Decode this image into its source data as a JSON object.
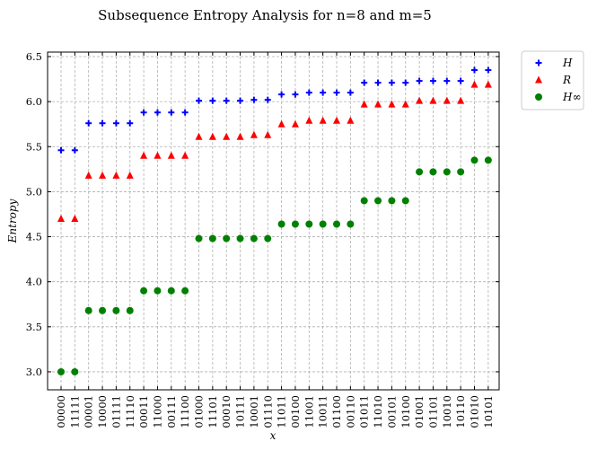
{
  "chart_data": {
    "type": "scatter",
    "title": "Subsequence Entropy Analysis for n=8 and m=5",
    "xlabel": "x",
    "ylabel": "Entropy",
    "ylim": [
      2.8,
      6.55
    ],
    "y_ticks": [
      3.0,
      3.5,
      4.0,
      4.5,
      5.0,
      5.5,
      6.0,
      6.5
    ],
    "y_tick_labels": [
      "3.0",
      "3.5",
      "4.0",
      "4.5",
      "5.0",
      "5.5",
      "6.0",
      "6.5"
    ],
    "grid": true,
    "legend_position": "outside-top-right",
    "categories": [
      "00000",
      "11111",
      "00001",
      "10000",
      "01111",
      "11110",
      "00011",
      "11000",
      "00111",
      "11100",
      "01000",
      "11101",
      "00010",
      "10111",
      "10001",
      "01110",
      "11011",
      "00100",
      "11001",
      "10011",
      "01100",
      "00110",
      "01011",
      "11010",
      "00101",
      "10100",
      "01001",
      "01101",
      "10010",
      "10110",
      "01010",
      "10101"
    ],
    "series": [
      {
        "name": "H",
        "marker": "plus",
        "color": "#0000ff",
        "values": [
          5.46,
          5.46,
          5.76,
          5.76,
          5.76,
          5.76,
          5.88,
          5.88,
          5.88,
          5.88,
          6.01,
          6.01,
          6.01,
          6.01,
          6.02,
          6.02,
          6.08,
          6.08,
          6.1,
          6.1,
          6.1,
          6.1,
          6.21,
          6.21,
          6.21,
          6.21,
          6.23,
          6.23,
          6.23,
          6.23,
          6.35,
          6.35
        ]
      },
      {
        "name": "R",
        "marker": "triangle",
        "color": "#ff0000",
        "values": [
          4.7,
          4.7,
          5.18,
          5.18,
          5.18,
          5.18,
          5.4,
          5.4,
          5.4,
          5.4,
          5.61,
          5.61,
          5.61,
          5.61,
          5.63,
          5.63,
          5.75,
          5.75,
          5.79,
          5.79,
          5.79,
          5.79,
          5.97,
          5.97,
          5.97,
          5.97,
          6.01,
          6.01,
          6.01,
          6.01,
          6.19,
          6.19
        ]
      },
      {
        "name": "H∞",
        "marker": "circle",
        "color": "#008000",
        "values": [
          3.0,
          3.0,
          3.68,
          3.68,
          3.68,
          3.68,
          3.9,
          3.9,
          3.9,
          3.9,
          4.48,
          4.48,
          4.48,
          4.48,
          4.48,
          4.48,
          4.64,
          4.64,
          4.64,
          4.64,
          4.64,
          4.64,
          4.9,
          4.9,
          4.9,
          4.9,
          5.22,
          5.22,
          5.22,
          5.22,
          5.35,
          5.35
        ]
      }
    ]
  }
}
